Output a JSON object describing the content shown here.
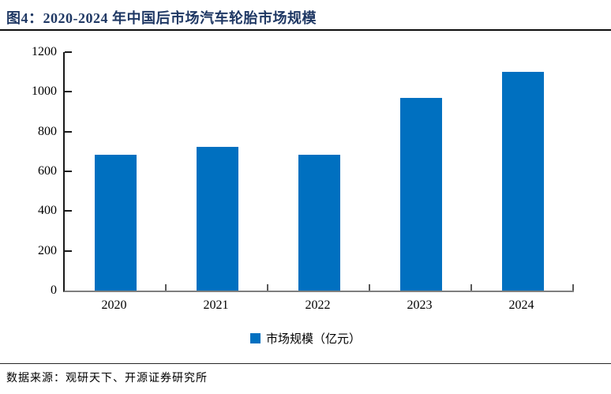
{
  "header": {
    "title": "图4：2020-2024 年中国后市场汽车轮胎市场规模"
  },
  "chart_data": {
    "type": "bar",
    "categories": [
      "2020",
      "2021",
      "2022",
      "2023",
      "2024"
    ],
    "values": [
      685,
      725,
      685,
      970,
      1100
    ],
    "title": "2020-2024 年中国后市场汽车轮胎市场规模",
    "xlabel": "",
    "ylabel": "",
    "ylim": [
      0,
      1200
    ],
    "yticks": [
      0,
      200,
      400,
      600,
      800,
      1000,
      1200
    ],
    "legend_entries": [
      "市场规模（亿元）"
    ],
    "legend_position": "bottom-center",
    "grid": false,
    "bar_color": "#0070c0"
  },
  "legend": {
    "label": "市场规模（亿元）"
  },
  "footer": {
    "source": "数据来源：观研天下、开源证券研究所"
  },
  "colors": {
    "title_text": "#1f3864",
    "bar_fill": "#0070c0",
    "left_axis": "#1a1a1a",
    "bottom_axis": "#7f7f7f"
  }
}
